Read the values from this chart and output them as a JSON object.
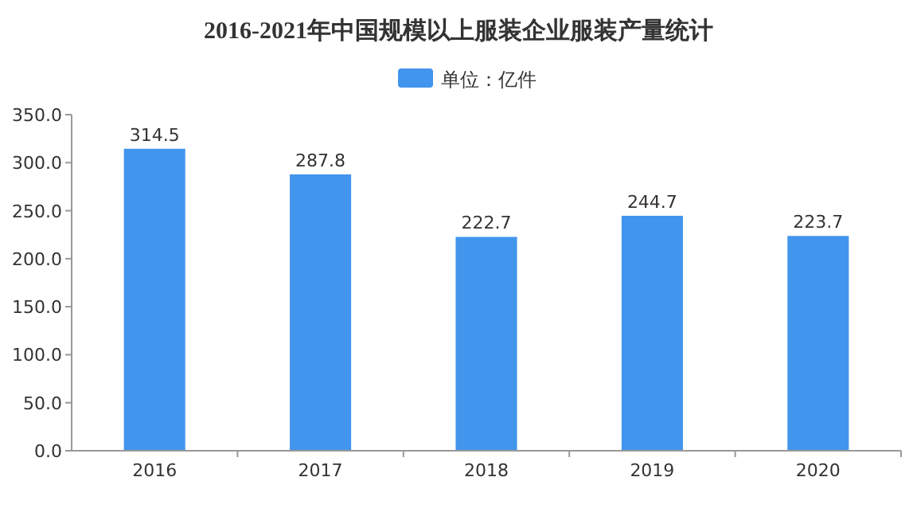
{
  "chart_data": {
    "type": "bar",
    "title": "2016-2021年中国规模以上服装企业服装产量统计",
    "categories": [
      "2016",
      "2017",
      "2018",
      "2019",
      "2020"
    ],
    "series": [
      {
        "name": "单位：亿件",
        "color": "#4295ec",
        "values": [
          314.5,
          287.8,
          222.7,
          244.7,
          223.7
        ]
      }
    ],
    "ylim": [
      0,
      350
    ],
    "yticks": [
      {
        "value": 0,
        "label": "0.0"
      },
      {
        "value": 50,
        "label": "50.0"
      },
      {
        "value": 100,
        "label": "100.0"
      },
      {
        "value": 150,
        "label": "150.0"
      },
      {
        "value": 200,
        "label": "200.0"
      },
      {
        "value": 250,
        "label": "250.0"
      },
      {
        "value": 300,
        "label": "300.0"
      },
      {
        "value": 350,
        "label": "350.0"
      }
    ],
    "data_labels": true,
    "legend": "top"
  }
}
